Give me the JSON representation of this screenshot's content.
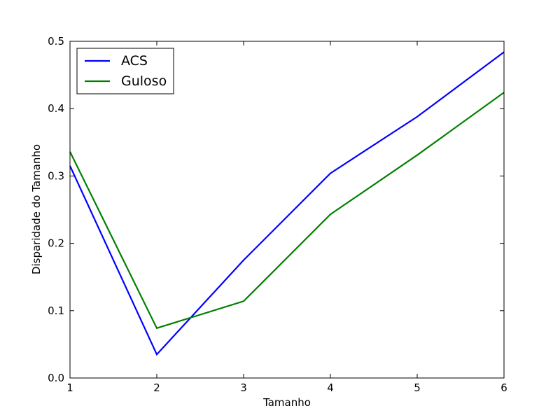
{
  "chart_data": {
    "type": "line",
    "x": [
      1,
      2,
      3,
      4,
      5,
      6
    ],
    "series": [
      {
        "name": "ACS",
        "values": [
          0.315,
          0.035,
          0.175,
          0.304,
          0.388,
          0.484
        ],
        "color": "#0000ff"
      },
      {
        "name": "Guloso",
        "values": [
          0.336,
          0.074,
          0.114,
          0.243,
          0.331,
          0.424
        ],
        "color": "#008000"
      }
    ],
    "xlabel": "Tamanho",
    "ylabel": "Disparidade do Tamanho",
    "xlim": [
      1,
      6
    ],
    "ylim": [
      0.0,
      0.5
    ],
    "xticks": [
      "1",
      "2",
      "3",
      "4",
      "5",
      "6"
    ],
    "yticks": [
      "0.0",
      "0.1",
      "0.2",
      "0.3",
      "0.4",
      "0.5"
    ],
    "legend_placement": "upper-left",
    "grid": false
  }
}
